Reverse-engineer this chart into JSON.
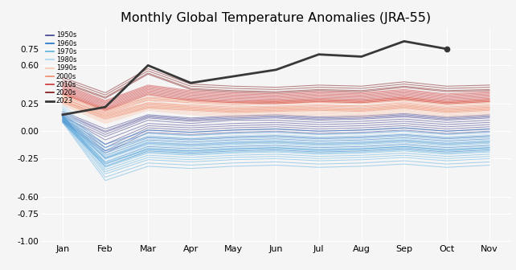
{
  "title": "Monthly Global Temperature Anomalies (JRA-55)",
  "months": [
    "Jan",
    "Feb",
    "Mar",
    "Apr",
    "May",
    "Jun",
    "Jul",
    "Aug",
    "Sep",
    "Oct",
    "Nov"
  ],
  "month_indices": [
    0,
    1,
    2,
    3,
    4,
    5,
    6,
    7,
    8,
    9,
    10
  ],
  "ylim": [
    -1.02,
    0.95
  ],
  "yticks": [
    -1.0,
    -0.75,
    -0.6,
    -0.25,
    0.0,
    0.25,
    0.6,
    0.75
  ],
  "ytick_labels": [
    "-1.00",
    "-0.75",
    "-0.60",
    "-0.25",
    "0.00",
    "0.25",
    "0.60",
    "0.75"
  ],
  "decade_data": {
    "1950s": [
      [
        0.13,
        -0.05,
        0.1,
        0.07,
        0.1,
        0.1,
        0.08,
        0.09,
        0.11,
        0.08,
        0.1
      ],
      [
        0.14,
        -0.08,
        0.07,
        0.05,
        0.07,
        0.08,
        0.06,
        0.07,
        0.09,
        0.06,
        0.08
      ],
      [
        0.12,
        -0.12,
        0.05,
        0.03,
        0.05,
        0.06,
        0.04,
        0.05,
        0.07,
        0.04,
        0.06
      ],
      [
        0.11,
        -0.15,
        0.03,
        0.01,
        0.03,
        0.04,
        0.02,
        0.03,
        0.05,
        0.02,
        0.04
      ],
      [
        0.15,
        -0.03,
        0.12,
        0.09,
        0.11,
        0.12,
        0.1,
        0.11,
        0.13,
        0.1,
        0.12
      ],
      [
        0.1,
        -0.18,
        0.01,
        -0.01,
        0.01,
        0.02,
        0.0,
        0.01,
        0.03,
        0.0,
        0.02
      ],
      [
        0.16,
        -0.01,
        0.13,
        0.1,
        0.12,
        0.13,
        0.11,
        0.12,
        0.14,
        0.11,
        0.13
      ],
      [
        0.18,
        0.02,
        0.15,
        0.12,
        0.14,
        0.15,
        0.13,
        0.14,
        0.16,
        0.13,
        0.15
      ],
      [
        0.09,
        -0.2,
        -0.01,
        -0.03,
        -0.01,
        0.0,
        -0.02,
        -0.01,
        0.01,
        -0.02,
        0.0
      ],
      [
        0.17,
        0.0,
        0.14,
        0.11,
        0.13,
        0.14,
        0.12,
        0.13,
        0.15,
        0.12,
        0.14
      ]
    ],
    "1960s": [
      [
        0.13,
        -0.22,
        -0.08,
        -0.1,
        -0.08,
        -0.07,
        -0.09,
        -0.08,
        -0.06,
        -0.09,
        -0.07
      ],
      [
        0.11,
        -0.25,
        -0.11,
        -0.13,
        -0.11,
        -0.1,
        -0.12,
        -0.11,
        -0.09,
        -0.12,
        -0.1
      ],
      [
        0.14,
        -0.18,
        -0.05,
        -0.07,
        -0.05,
        -0.04,
        -0.06,
        -0.05,
        -0.03,
        -0.06,
        -0.04
      ],
      [
        0.1,
        -0.28,
        -0.14,
        -0.16,
        -0.14,
        -0.13,
        -0.15,
        -0.14,
        -0.12,
        -0.15,
        -0.13
      ],
      [
        0.09,
        -0.3,
        -0.16,
        -0.18,
        -0.16,
        -0.15,
        -0.17,
        -0.16,
        -0.14,
        -0.17,
        -0.15
      ],
      [
        0.15,
        -0.15,
        -0.02,
        -0.04,
        -0.02,
        -0.01,
        -0.03,
        -0.02,
        0.0,
        -0.03,
        -0.01
      ],
      [
        0.12,
        -0.24,
        -0.1,
        -0.12,
        -0.1,
        -0.09,
        -0.11,
        -0.1,
        -0.08,
        -0.11,
        -0.09
      ],
      [
        0.13,
        -0.2,
        -0.06,
        -0.08,
        -0.06,
        -0.05,
        -0.07,
        -0.06,
        -0.04,
        -0.07,
        -0.05
      ],
      [
        0.16,
        -0.12,
        0.01,
        -0.01,
        0.01,
        0.02,
        0.0,
        0.01,
        0.03,
        0.0,
        0.02
      ],
      [
        0.08,
        -0.32,
        -0.18,
        -0.2,
        -0.18,
        -0.17,
        -0.19,
        -0.18,
        -0.16,
        -0.19,
        -0.17
      ]
    ],
    "1970s": [
      [
        0.12,
        -0.35,
        -0.22,
        -0.24,
        -0.22,
        -0.21,
        -0.23,
        -0.22,
        -0.2,
        -0.23,
        -0.21
      ],
      [
        0.13,
        -0.32,
        -0.19,
        -0.21,
        -0.19,
        -0.18,
        -0.2,
        -0.19,
        -0.17,
        -0.2,
        -0.18
      ],
      [
        0.11,
        -0.37,
        -0.24,
        -0.26,
        -0.24,
        -0.23,
        -0.25,
        -0.24,
        -0.22,
        -0.25,
        -0.23
      ],
      [
        0.14,
        -0.29,
        -0.16,
        -0.18,
        -0.16,
        -0.15,
        -0.17,
        -0.16,
        -0.14,
        -0.17,
        -0.15
      ],
      [
        0.09,
        -0.42,
        -0.29,
        -0.31,
        -0.29,
        -0.28,
        -0.3,
        -0.29,
        -0.27,
        -0.3,
        -0.28
      ],
      [
        0.12,
        -0.33,
        -0.2,
        -0.22,
        -0.2,
        -0.19,
        -0.21,
        -0.2,
        -0.18,
        -0.21,
        -0.19
      ],
      [
        0.1,
        -0.39,
        -0.26,
        -0.28,
        -0.26,
        -0.25,
        -0.27,
        -0.26,
        -0.24,
        -0.27,
        -0.25
      ],
      [
        0.13,
        -0.3,
        -0.17,
        -0.19,
        -0.17,
        -0.16,
        -0.18,
        -0.17,
        -0.15,
        -0.18,
        -0.16
      ],
      [
        0.15,
        -0.25,
        -0.12,
        -0.14,
        -0.12,
        -0.11,
        -0.13,
        -0.12,
        -0.1,
        -0.13,
        -0.11
      ],
      [
        0.08,
        -0.45,
        -0.32,
        -0.34,
        -0.32,
        -0.31,
        -0.33,
        -0.32,
        -0.3,
        -0.33,
        -0.31
      ]
    ],
    "1980s": [
      [
        0.18,
        -0.28,
        -0.15,
        -0.17,
        -0.15,
        -0.14,
        -0.16,
        -0.15,
        -0.13,
        -0.16,
        -0.14
      ],
      [
        0.2,
        -0.23,
        -0.1,
        -0.12,
        -0.1,
        -0.09,
        -0.11,
        -0.1,
        -0.08,
        -0.11,
        -0.09
      ],
      [
        0.22,
        -0.2,
        -0.07,
        -0.09,
        -0.07,
        -0.06,
        -0.08,
        -0.07,
        -0.05,
        -0.08,
        -0.06
      ],
      [
        0.17,
        -0.3,
        -0.17,
        -0.19,
        -0.17,
        -0.16,
        -0.18,
        -0.17,
        -0.15,
        -0.18,
        -0.16
      ],
      [
        0.21,
        -0.22,
        -0.09,
        -0.11,
        -0.09,
        -0.08,
        -0.1,
        -0.09,
        -0.07,
        -0.1,
        -0.08
      ],
      [
        0.19,
        -0.26,
        -0.13,
        -0.15,
        -0.13,
        -0.12,
        -0.14,
        -0.13,
        -0.11,
        -0.14,
        -0.12
      ],
      [
        0.2,
        -0.24,
        -0.11,
        -0.13,
        -0.11,
        -0.1,
        -0.12,
        -0.11,
        -0.09,
        -0.12,
        -0.1
      ],
      [
        0.16,
        -0.32,
        -0.19,
        -0.21,
        -0.19,
        -0.18,
        -0.2,
        -0.19,
        -0.17,
        -0.2,
        -0.18
      ],
      [
        0.23,
        -0.17,
        -0.04,
        -0.06,
        -0.04,
        -0.03,
        -0.05,
        -0.04,
        -0.02,
        -0.05,
        -0.03
      ],
      [
        0.25,
        -0.15,
        -0.02,
        -0.04,
        -0.02,
        -0.01,
        -0.03,
        -0.02,
        0.0,
        -0.03,
        -0.01
      ]
    ],
    "1990s": [
      [
        0.27,
        0.1,
        0.22,
        0.18,
        0.16,
        0.18,
        0.17,
        0.16,
        0.2,
        0.16,
        0.18
      ],
      [
        0.29,
        0.13,
        0.25,
        0.2,
        0.18,
        0.2,
        0.19,
        0.18,
        0.22,
        0.18,
        0.2
      ],
      [
        0.31,
        0.16,
        0.28,
        0.22,
        0.2,
        0.22,
        0.21,
        0.2,
        0.24,
        0.2,
        0.22
      ],
      [
        0.24,
        0.07,
        0.19,
        0.15,
        0.13,
        0.15,
        0.14,
        0.13,
        0.17,
        0.13,
        0.15
      ],
      [
        0.34,
        0.18,
        0.31,
        0.25,
        0.23,
        0.25,
        0.24,
        0.23,
        0.27,
        0.23,
        0.25
      ],
      [
        0.26,
        0.09,
        0.21,
        0.17,
        0.15,
        0.17,
        0.16,
        0.15,
        0.19,
        0.15,
        0.17
      ],
      [
        0.28,
        0.11,
        0.23,
        0.19,
        0.17,
        0.19,
        0.18,
        0.17,
        0.21,
        0.17,
        0.19
      ],
      [
        0.37,
        0.21,
        0.34,
        0.27,
        0.26,
        0.27,
        0.26,
        0.26,
        0.29,
        0.26,
        0.27
      ],
      [
        0.3,
        0.14,
        0.26,
        0.21,
        0.19,
        0.21,
        0.2,
        0.19,
        0.23,
        0.19,
        0.21
      ],
      [
        0.25,
        0.08,
        0.2,
        0.16,
        0.14,
        0.16,
        0.15,
        0.14,
        0.18,
        0.14,
        0.16
      ]
    ],
    "2000s": [
      [
        0.28,
        0.14,
        0.24,
        0.22,
        0.2,
        0.21,
        0.22,
        0.21,
        0.24,
        0.2,
        0.22
      ],
      [
        0.3,
        0.16,
        0.26,
        0.24,
        0.22,
        0.23,
        0.24,
        0.23,
        0.26,
        0.22,
        0.24
      ],
      [
        0.27,
        0.12,
        0.22,
        0.2,
        0.18,
        0.19,
        0.2,
        0.19,
        0.22,
        0.18,
        0.2
      ],
      [
        0.33,
        0.18,
        0.29,
        0.27,
        0.25,
        0.26,
        0.27,
        0.26,
        0.29,
        0.25,
        0.27
      ],
      [
        0.28,
        0.13,
        0.23,
        0.21,
        0.19,
        0.2,
        0.21,
        0.2,
        0.23,
        0.19,
        0.21
      ],
      [
        0.32,
        0.17,
        0.28,
        0.26,
        0.24,
        0.25,
        0.26,
        0.25,
        0.28,
        0.24,
        0.26
      ],
      [
        0.3,
        0.15,
        0.25,
        0.23,
        0.21,
        0.22,
        0.23,
        0.22,
        0.25,
        0.21,
        0.23
      ],
      [
        0.26,
        0.11,
        0.21,
        0.19,
        0.17,
        0.18,
        0.19,
        0.18,
        0.21,
        0.17,
        0.19
      ],
      [
        0.34,
        0.19,
        0.3,
        0.28,
        0.26,
        0.27,
        0.28,
        0.27,
        0.3,
        0.26,
        0.28
      ],
      [
        0.35,
        0.2,
        0.31,
        0.29,
        0.27,
        0.28,
        0.29,
        0.28,
        0.31,
        0.27,
        0.29
      ]
    ],
    "2010s": [
      [
        0.37,
        0.22,
        0.36,
        0.31,
        0.29,
        0.28,
        0.3,
        0.29,
        0.32,
        0.28,
        0.3
      ],
      [
        0.41,
        0.26,
        0.4,
        0.35,
        0.33,
        0.32,
        0.34,
        0.33,
        0.36,
        0.32,
        0.34
      ],
      [
        0.35,
        0.2,
        0.34,
        0.29,
        0.27,
        0.26,
        0.28,
        0.27,
        0.3,
        0.26,
        0.28
      ],
      [
        0.39,
        0.24,
        0.38,
        0.33,
        0.31,
        0.3,
        0.32,
        0.31,
        0.34,
        0.3,
        0.32
      ],
      [
        0.43,
        0.28,
        0.42,
        0.37,
        0.35,
        0.34,
        0.36,
        0.35,
        0.38,
        0.34,
        0.36
      ],
      [
        0.34,
        0.19,
        0.33,
        0.28,
        0.26,
        0.25,
        0.27,
        0.26,
        0.29,
        0.25,
        0.27
      ],
      [
        0.38,
        0.23,
        0.37,
        0.32,
        0.3,
        0.29,
        0.31,
        0.3,
        0.33,
        0.29,
        0.31
      ],
      [
        0.42,
        0.27,
        0.41,
        0.36,
        0.34,
        0.33,
        0.35,
        0.34,
        0.37,
        0.33,
        0.35
      ],
      [
        0.36,
        0.21,
        0.35,
        0.3,
        0.28,
        0.27,
        0.29,
        0.28,
        0.31,
        0.27,
        0.29
      ],
      [
        0.4,
        0.25,
        0.39,
        0.34,
        0.32,
        0.31,
        0.33,
        0.32,
        0.35,
        0.31,
        0.33
      ]
    ],
    "2020s": [
      [
        0.44,
        0.3,
        0.52,
        0.38,
        0.36,
        0.35,
        0.37,
        0.36,
        0.4,
        0.36,
        0.37
      ],
      [
        0.49,
        0.35,
        0.57,
        0.43,
        0.41,
        0.4,
        0.42,
        0.41,
        0.45,
        0.41,
        0.42
      ],
      [
        0.47,
        0.33,
        0.55,
        0.41,
        0.39,
        0.38,
        0.4,
        0.39,
        0.43,
        0.39,
        0.4
      ],
      [
        0.45,
        0.31,
        0.53,
        0.39,
        0.37,
        0.36,
        0.38,
        0.37,
        0.41,
        0.37,
        0.38
      ]
    ],
    "2023": [
      0.15,
      0.22,
      0.6,
      0.44,
      0.5,
      0.56,
      0.7,
      0.68,
      0.82,
      0.75,
      null
    ]
  },
  "decade_colors": {
    "1950s": "#3d3d8f",
    "1960s": "#1e6fc2",
    "1970s": "#5ab0e0",
    "1980s": "#a8d8f0",
    "1990s": "#fac8b0",
    "2000s": "#f08868",
    "2010s": "#cc3535",
    "2020s": "#7a1010",
    "2023": "#383838"
  },
  "legend_entries": [
    "1950s",
    "1960s",
    "1970s",
    "1980s",
    "1990s",
    "2000s",
    "2010s",
    "2020s",
    "2023"
  ],
  "background_color": "#f5f5f5",
  "grid_color": "#ffffff"
}
